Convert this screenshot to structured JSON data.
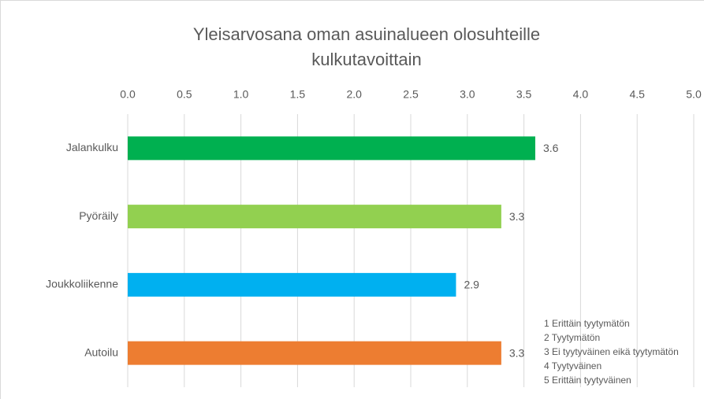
{
  "chart_data": {
    "type": "bar",
    "orientation": "horizontal",
    "title": [
      "Yleisarvosana oman asuinalueen olosuhteille",
      "kulkutavoittain"
    ],
    "categories": [
      "Jalankulku",
      "Pyöräily",
      "Joukkoliikenne",
      "Autoilu"
    ],
    "values": [
      3.6,
      3.3,
      2.9,
      3.3
    ],
    "colors": [
      "#00b050",
      "#92d050",
      "#00b0f0",
      "#ed7d31"
    ],
    "xlim": [
      0,
      5
    ],
    "xticks": [
      {
        "value": 0,
        "label": "0.0"
      },
      {
        "value": 0.5,
        "label": "0.5"
      },
      {
        "value": 1,
        "label": "1.0"
      },
      {
        "value": 1.5,
        "label": "1.5"
      },
      {
        "value": 2,
        "label": "2.0"
      },
      {
        "value": 2.5,
        "label": "2.5"
      },
      {
        "value": 3,
        "label": "3.0"
      },
      {
        "value": 3.5,
        "label": "3.5"
      },
      {
        "value": 4,
        "label": "4.0"
      },
      {
        "value": 4.5,
        "label": "4.5"
      },
      {
        "value": 5,
        "label": "5.0"
      }
    ],
    "grid": true,
    "annotations": [
      "1  Erittäin tyytymätön",
      "2  Tyytymätön",
      "3  Ei tyytyväinen eikä tyytymätön",
      "4  Tyytyväinen",
      "5  Erittäin tyytyväinen"
    ]
  }
}
